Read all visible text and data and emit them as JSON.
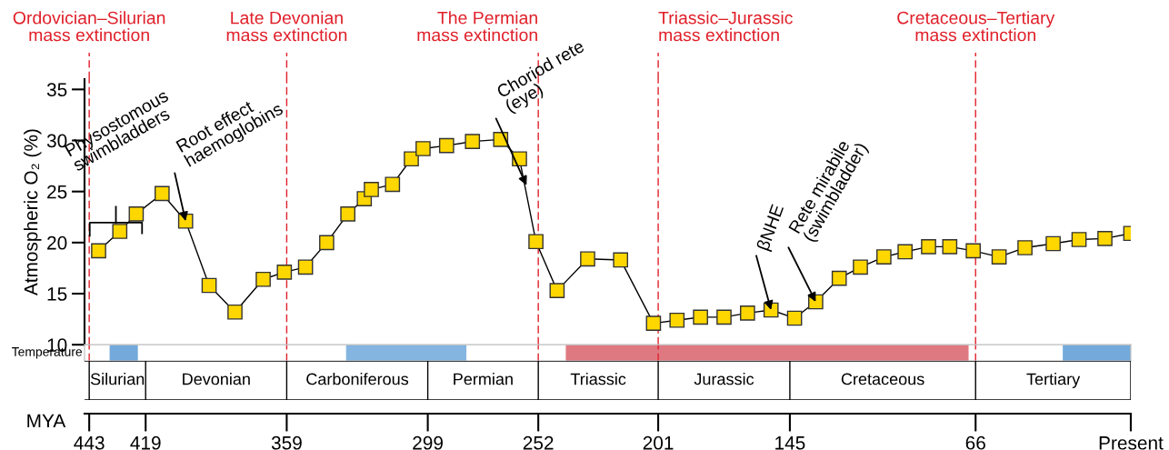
{
  "chart_data": {
    "type": "line",
    "ylabel": "Atmospheric O₂ (%)",
    "xlabel": "MYA",
    "x": [
      439,
      430,
      423,
      412,
      402,
      392,
      381,
      369,
      360,
      351,
      342,
      333,
      326,
      323,
      314,
      306,
      301,
      291,
      280,
      268,
      260,
      253,
      244,
      231,
      217,
      203,
      193,
      183,
      173,
      163,
      153,
      143,
      134,
      124,
      115,
      105,
      96,
      86,
      77,
      67,
      56,
      45,
      33,
      22,
      11,
      0
    ],
    "series": [
      {
        "color": "#ffd700",
        "values": [
          19.2,
          21.1,
          22.8,
          24.8,
          22.1,
          15.8,
          13.2,
          16.4,
          17.1,
          17.6,
          20.0,
          22.8,
          24.3,
          25.2,
          25.7,
          28.2,
          29.2,
          29.5,
          29.9,
          30.1,
          28.2,
          20.1,
          15.3,
          18.4,
          18.3,
          12.1,
          12.4,
          12.7,
          12.7,
          13.1,
          13.4,
          12.6,
          14.2,
          16.5,
          17.6,
          18.6,
          19.1,
          19.6,
          19.6,
          19.2,
          18.6,
          19.5,
          19.9,
          20.3,
          20.4,
          20.9
        ]
      }
    ],
    "marker": "square",
    "line_style": "solid",
    "xlim": [
      445,
      0
    ],
    "xticks": [
      443,
      419,
      359,
      299,
      252,
      201,
      145,
      66,
      {
        "value": 0,
        "label": "Present"
      }
    ],
    "ylim": [
      10,
      36
    ],
    "yticks": [
      10,
      15,
      20,
      25,
      30,
      35
    ],
    "grid": false,
    "legend": false,
    "ref_lines": [
      {
        "axis": "x",
        "value": 443,
        "label": "Ordovician–Silurian\nmass extinction",
        "color": "#e0202a",
        "line_style": "dashed"
      },
      {
        "axis": "x",
        "value": 359,
        "label": "Late Devonian\nmass extinction",
        "color": "#e0202a",
        "line_style": "dashed"
      },
      {
        "axis": "x",
        "value": 252,
        "label": "The Permian\nmass extinction",
        "color": "#e0202a",
        "line_style": "dashed"
      },
      {
        "axis": "x",
        "value": 201,
        "label": "Triassic–Jurassic\nmass extinction",
        "color": "#e0202a",
        "line_style": "dashed"
      },
      {
        "axis": "x",
        "value": 66,
        "label": "Cretaceous–Tertiary\nmass extinction",
        "color": "#e0202a",
        "line_style": "dashed"
      }
    ],
    "annotations": [
      "Physostomous\nswimbladders",
      {
        "text": "Root effect\nhaemoglobins",
        "x": 402,
        "y": 22.1
      },
      {
        "text": "Choriod rete\n(eye)",
        "x": 257,
        "y": 25.6
      },
      {
        "text": "βNHE",
        "x": 153,
        "y": 13.4
      },
      {
        "text": "Rete mirabile\n(swimbladder)",
        "x": 134,
        "y": 14.2
      },
      "Temperature",
      "Silurian",
      "Devonian",
      "Carboniferous",
      "Permian",
      "Triassic",
      "Jurassic",
      "Cretaceous",
      "Tertiary"
    ]
  }
}
